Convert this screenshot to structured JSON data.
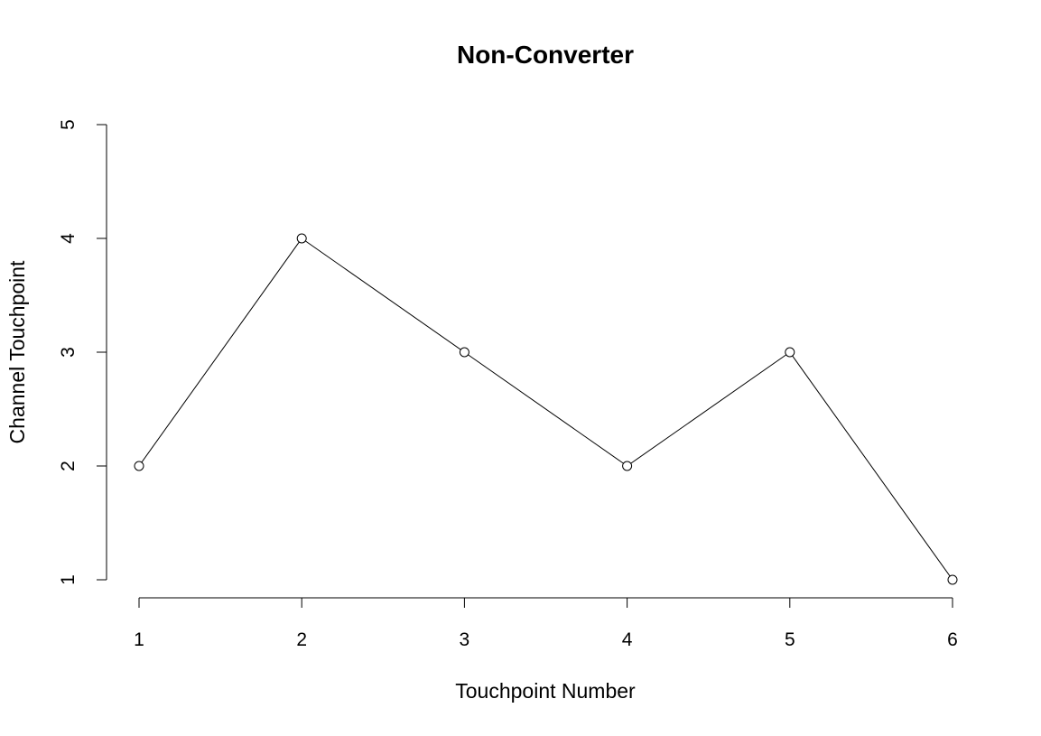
{
  "chart_data": {
    "type": "line",
    "title": "Non-Converter",
    "xlabel": "Touchpoint Number",
    "ylabel": "Channel Touchpoint",
    "x": [
      1,
      2,
      3,
      4,
      5,
      6
    ],
    "series": [
      {
        "values": [
          2,
          4,
          3,
          2,
          3,
          1
        ]
      }
    ],
    "xlim": [
      1,
      6
    ],
    "ylim": [
      1,
      5
    ],
    "x_ticks": [
      1,
      2,
      3,
      4,
      5,
      6
    ],
    "y_ticks": [
      1,
      2,
      3,
      4,
      5
    ],
    "x_tick_labels": [
      "1",
      "2",
      "3",
      "4",
      "5",
      "6"
    ],
    "y_tick_labels": [
      "1",
      "2",
      "3",
      "4",
      "5"
    ],
    "marker": "open-circle",
    "line_color": "#000000",
    "grid": false,
    "legend": "none"
  }
}
